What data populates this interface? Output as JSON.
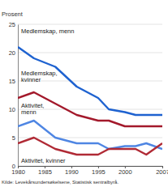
{
  "chart_data": {
    "type": "line",
    "y_label": "Prosent",
    "source": "Kilde: Levekårsundersøkelsene, Statistisk sentralbyrå.",
    "x": [
      1980,
      1983,
      1987,
      1991,
      1995,
      1997,
      2000,
      2002,
      2004,
      2007
    ],
    "xlim": [
      1980,
      2007
    ],
    "xticks": [
      1980,
      1985,
      1990,
      1995,
      2000,
      2007
    ],
    "ylim": [
      0,
      25
    ],
    "yticks": [
      0,
      5,
      10,
      15,
      20,
      25
    ],
    "grid": true,
    "series": [
      {
        "name": "Medlemskap, menn",
        "color": "#1e62d0",
        "values": [
          21,
          19,
          17.5,
          14,
          12,
          10,
          9.5,
          9,
          9,
          9
        ]
      },
      {
        "name": "Medlemskap, kvinner",
        "color": "#a3192b",
        "values": [
          12,
          13,
          11,
          9,
          8,
          8,
          7,
          7,
          7,
          7
        ]
      },
      {
        "name": "Aktivitet, menn",
        "color": "#4f86e3",
        "values": [
          7,
          8,
          5,
          4,
          4,
          3,
          3.5,
          3.5,
          4,
          3
        ]
      },
      {
        "name": "Aktivitet, kvinner",
        "color": "#b02a35",
        "values": [
          4,
          5,
          3,
          2,
          2,
          3,
          3,
          3,
          2,
          4
        ]
      }
    ]
  }
}
